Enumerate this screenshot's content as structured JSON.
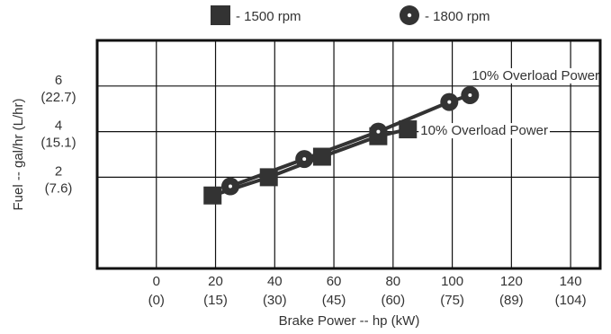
{
  "chart_data": {
    "type": "line",
    "legend": {
      "placement": "top",
      "entries": [
        {
          "label": "- 1500 rpm",
          "marker": "square"
        },
        {
          "label": "- 1800 rpm",
          "marker": "circle-dot"
        }
      ]
    },
    "xlabel": "Brake Power -- hp (kW)",
    "ylabel": "Fuel -- gal/hr (L/hr)",
    "xlim": [
      -20,
      150
    ],
    "ylim": [
      -2,
      8
    ],
    "grid": true,
    "x_ticks": [
      {
        "value": 0,
        "label": "0",
        "sublabel": "(0)"
      },
      {
        "value": 20,
        "label": "20",
        "sublabel": "(15)"
      },
      {
        "value": 40,
        "label": "40",
        "sublabel": "(30)"
      },
      {
        "value": 60,
        "label": "60",
        "sublabel": "(45)"
      },
      {
        "value": 80,
        "label": "80",
        "sublabel": "(60)"
      },
      {
        "value": 100,
        "label": "100",
        "sublabel": "(75)"
      },
      {
        "value": 120,
        "label": "120",
        "sublabel": "(89)"
      },
      {
        "value": 140,
        "label": "140",
        "sublabel": "(104)"
      }
    ],
    "y_ticks": [
      {
        "value": 2,
        "label": "2",
        "sublabel": "(7.6)"
      },
      {
        "value": 4,
        "label": "4",
        "sublabel": "(15.1)"
      },
      {
        "value": 6,
        "label": "6",
        "sublabel": "(22.7)"
      }
    ],
    "series": [
      {
        "name": "1500 rpm",
        "marker": "square",
        "x": [
          19,
          38,
          56,
          75,
          85
        ],
        "y": [
          1.2,
          2.0,
          2.9,
          3.8,
          4.1
        ]
      },
      {
        "name": "1800 rpm",
        "marker": "circle-dot",
        "x": [
          25,
          50,
          75,
          99,
          106
        ],
        "y": [
          1.6,
          2.8,
          4.0,
          5.3,
          5.6
        ]
      }
    ],
    "annotations": [
      {
        "text": "10% Overload Power",
        "x": 106,
        "y": 5.6,
        "series": "1800 rpm"
      },
      {
        "text": "10% Overload Power",
        "x": 85,
        "y": 4.1,
        "series": "1500 rpm"
      }
    ]
  }
}
